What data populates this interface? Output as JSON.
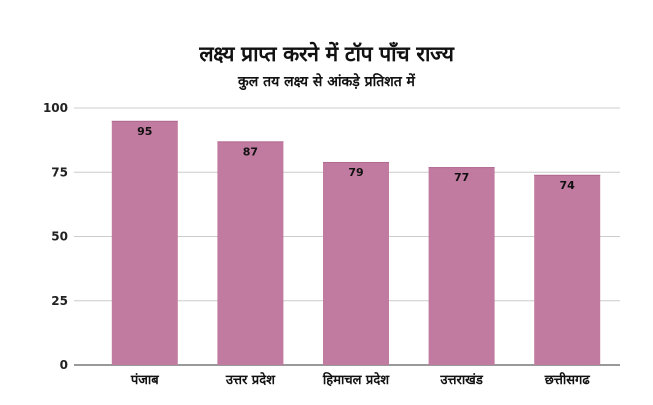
{
  "chart_data": {
    "type": "bar",
    "title": "लक्ष्य प्राप्त करने में  टॉप पाँच राज्य",
    "subtitle": "कुल तय लक्ष्य से आंकड़े प्रतिशत में",
    "categories": [
      "पंजाब",
      "उत्तर प्रदेश",
      "हिमाचल प्रदेश",
      "उत्तराखंड",
      "छत्तीसगढ"
    ],
    "values": [
      95,
      87,
      79,
      77,
      74
    ],
    "data_labels": [
      "95",
      "87",
      "79",
      "77",
      "74"
    ],
    "yticks": [
      "0",
      "25",
      "50",
      "75",
      "100"
    ],
    "ylim": [
      0,
      100
    ],
    "grid": true,
    "legend": "none",
    "bar_color": "#c27ba0",
    "xlabel": "",
    "ylabel": ""
  }
}
